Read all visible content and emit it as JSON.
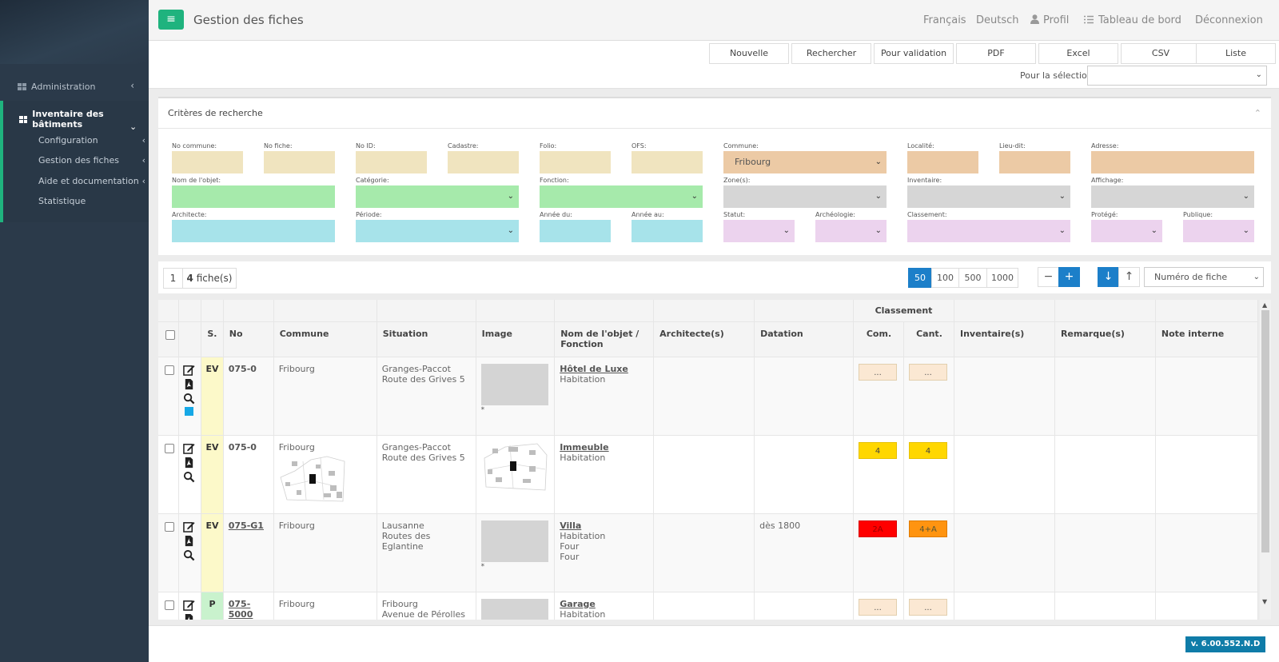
{
  "sidebar": {
    "admin_label": "Administration",
    "inventory_label": "Inventaire des bâtiments",
    "sub_items": [
      {
        "label": "Configuration",
        "has_chevron": true
      },
      {
        "label": "Gestion des fiches",
        "has_chevron": true
      },
      {
        "label": "Aide et documentation",
        "has_chevron": true
      },
      {
        "label": "Statistique",
        "has_chevron": false
      }
    ]
  },
  "header": {
    "title": "Gestion des fiches",
    "nav": {
      "lang_fr": "Français",
      "lang_de": "Deutsch",
      "profile": "Profil",
      "dashboard": "Tableau de bord",
      "logout": "Déconnexion"
    }
  },
  "toolbar": {
    "buttons": [
      "Nouvelle",
      "Rechercher",
      "Pour validation",
      "PDF",
      "Excel",
      "CSV",
      "Liste"
    ],
    "selection_label": "Pour la sélection:",
    "selection_value": ""
  },
  "criteria": {
    "title": "Critères de recherche",
    "fields": {
      "no_commune": "No commune:",
      "no_fiche": "No fiche:",
      "no_id": "No ID:",
      "cadastre": "Cadastre:",
      "folio": "Folio:",
      "ofs": "OFS:",
      "commune": "Commune:",
      "commune_value": "Fribourg",
      "localite": "Localité:",
      "lieu_dit": "Lieu-dit:",
      "adresse": "Adresse:",
      "nom_objet": "Nom de l'objet:",
      "categorie": "Catégorie:",
      "fonction": "Fonction:",
      "zones": "Zone(s):",
      "inventaire": "Inventaire:",
      "affichage": "Affichage:",
      "architecte": "Architecte:",
      "periode": "Période:",
      "annee_du": "Année du:",
      "annee_au": "Année au:",
      "statut": "Statut:",
      "archeologie": "Archéologie:",
      "classement": "Classement:",
      "protege": "Protégé:",
      "publique": "Publique:"
    },
    "colors": {
      "beige": "#f0e4bf",
      "orange": "#eccaa5",
      "green": "#a6eaab",
      "grey": "#d6d6d6",
      "cyan": "#a7e3ea",
      "pink": "#ecd3ee"
    }
  },
  "pager": {
    "page": "1",
    "count_num": "4",
    "count_label": "fiche(s)",
    "sizes": [
      "50",
      "100",
      "500",
      "1000"
    ],
    "active_size": "50",
    "sort_label": "Numéro de fiche"
  },
  "table": {
    "group_header": "Classement",
    "headers": {
      "s": "S.",
      "no": "No",
      "commune": "Commune",
      "situation": "Situation",
      "image": "Image",
      "nom1": "Nom de l'objet /",
      "nom2": "Fonction",
      "architectes": "Architecte(s)",
      "datation": "Datation",
      "com": "Com.",
      "cant": "Cant.",
      "inventaires": "Inventaire(s)",
      "remarques": "Remarque(s)",
      "note": "Note interne"
    },
    "rows": [
      {
        "s": "EV",
        "no": "075-0",
        "commune": "Fribourg",
        "sit1": "Granges-Paccot",
        "sit2": "Route des Grives 5",
        "name": "Hôtel de Luxe",
        "f1": "Habitation",
        "f2": "",
        "f3": "",
        "datation": "",
        "com": "...",
        "cant": "...",
        "star": "*"
      },
      {
        "s": "EV",
        "no": "075-0",
        "commune": "Fribourg",
        "sit1": "Granges-Paccot",
        "sit2": "Route des Grives 5",
        "name": "Immeuble",
        "f1": "Habitation",
        "f2": "",
        "f3": "",
        "datation": "",
        "com": "4",
        "cant": "4",
        "star": ""
      },
      {
        "s": "EV",
        "no": "075-G1",
        "commune": "Fribourg",
        "sit1": "Lausanne",
        "sit2": "Routes des Eglantine",
        "name": "Villa",
        "f1": "Habitation",
        "f2": "Four",
        "f3": "Four",
        "datation": "dès 1800",
        "com": "2A",
        "cant": "4+A",
        "star": "*"
      },
      {
        "s": "P",
        "no": "075-5000",
        "commune": "Fribourg",
        "sit1": "Fribourg",
        "sit2": "Avenue de Pérolles",
        "name": "Garage",
        "f1": "Habitation",
        "f2": "",
        "f3": "",
        "datation": "",
        "com": "...",
        "cant": "...",
        "star": ""
      }
    ]
  },
  "footer": {
    "version": "v. 6.00.552.N.D"
  },
  "colors": {
    "accent_green": "#1fb37e",
    "accent_blue": "#1c7fc9",
    "sidebar_bg": "#2b3a4a"
  }
}
